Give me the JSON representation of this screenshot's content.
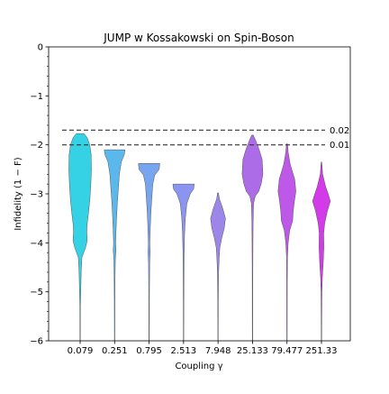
{
  "chart_data": {
    "type": "violin",
    "title": "JUMP w Kossakowski on Spin-Boson",
    "xlabel": "Coupling γ",
    "ylabel": "Infidelity (1 − F)",
    "ylim": [
      -6,
      0
    ],
    "yticks": [
      0,
      -1,
      -2,
      -3,
      -4,
      -5,
      -6
    ],
    "ytick_labels": [
      "0",
      "−1",
      "−2",
      "−3",
      "−4",
      "−5",
      "−6"
    ],
    "grid": false,
    "reference_lines": [
      {
        "label": "0.02",
        "y": -1.699
      },
      {
        "label": "0.01",
        "y": -2.0
      }
    ],
    "categories": [
      "0.079",
      "0.251",
      "0.795",
      "2.513",
      "7.948",
      "25.133",
      "79.477",
      "251.33"
    ],
    "violins": [
      {
        "category": "0.079",
        "color": "#35d2e6",
        "profile": [
          [
            -1.77,
            0.26
          ],
          [
            -1.85,
            0.47
          ],
          [
            -2.0,
            0.65
          ],
          [
            -2.2,
            0.74
          ],
          [
            -2.5,
            0.76
          ],
          [
            -2.8,
            0.72
          ],
          [
            -3.1,
            0.66
          ],
          [
            -3.4,
            0.56
          ],
          [
            -3.65,
            0.46
          ],
          [
            -3.8,
            0.45
          ],
          [
            -3.95,
            0.48
          ],
          [
            -4.1,
            0.36
          ],
          [
            -4.3,
            0.12
          ],
          [
            -4.6,
            0.07
          ],
          [
            -4.9,
            0.05
          ],
          [
            -5.3,
            0.02
          ],
          [
            -6.0,
            0.015
          ]
        ]
      },
      {
        "category": "0.251",
        "color": "#5ab8ec",
        "profile": [
          [
            -2.1,
            0.7
          ],
          [
            -2.2,
            0.65
          ],
          [
            -2.35,
            0.45
          ],
          [
            -2.6,
            0.32
          ],
          [
            -2.9,
            0.25
          ],
          [
            -3.2,
            0.18
          ],
          [
            -3.5,
            0.13
          ],
          [
            -3.8,
            0.09
          ],
          [
            -4.0,
            0.07
          ],
          [
            -4.15,
            0.09
          ],
          [
            -4.35,
            0.05
          ],
          [
            -4.7,
            0.03
          ],
          [
            -5.2,
            0.02
          ],
          [
            -6.0,
            0.015
          ]
        ]
      },
      {
        "category": "0.795",
        "color": "#78a5f0",
        "profile": [
          [
            -2.38,
            0.72
          ],
          [
            -2.5,
            0.68
          ],
          [
            -2.62,
            0.38
          ],
          [
            -2.8,
            0.25
          ],
          [
            -3.1,
            0.18
          ],
          [
            -3.4,
            0.12
          ],
          [
            -3.7,
            0.08
          ],
          [
            -4.0,
            0.05
          ],
          [
            -4.2,
            0.07
          ],
          [
            -4.4,
            0.04
          ],
          [
            -4.8,
            0.03
          ],
          [
            -5.2,
            0.02
          ],
          [
            -6.0,
            0.015
          ]
        ]
      },
      {
        "category": "2.513",
        "color": "#8b94ee",
        "profile": [
          [
            -2.8,
            0.72
          ],
          [
            -2.9,
            0.68
          ],
          [
            -3.0,
            0.45
          ],
          [
            -3.2,
            0.22
          ],
          [
            -3.5,
            0.12
          ],
          [
            -3.8,
            0.07
          ],
          [
            -4.2,
            0.04
          ],
          [
            -4.6,
            0.03
          ],
          [
            -5.2,
            0.02
          ],
          [
            -6.0,
            0.015
          ]
        ]
      },
      {
        "category": "7.948",
        "color": "#9d86ea",
        "profile": [
          [
            -2.98,
            0.03
          ],
          [
            -3.1,
            0.09
          ],
          [
            -3.3,
            0.32
          ],
          [
            -3.5,
            0.5
          ],
          [
            -3.7,
            0.42
          ],
          [
            -3.9,
            0.25
          ],
          [
            -4.1,
            0.12
          ],
          [
            -4.3,
            0.08
          ],
          [
            -4.6,
            0.04
          ],
          [
            -5.2,
            0.02
          ],
          [
            -6.0,
            0.015
          ]
        ]
      },
      {
        "category": "25.133",
        "color": "#ac6ce8",
        "profile": [
          [
            -1.8,
            0.05
          ],
          [
            -1.9,
            0.2
          ],
          [
            -2.1,
            0.45
          ],
          [
            -2.3,
            0.65
          ],
          [
            -2.6,
            0.7
          ],
          [
            -2.8,
            0.58
          ],
          [
            -2.95,
            0.42
          ],
          [
            -3.05,
            0.18
          ],
          [
            -3.2,
            0.07
          ],
          [
            -3.6,
            0.04
          ],
          [
            -4.0,
            0.03
          ],
          [
            -4.6,
            0.02
          ],
          [
            -6.0,
            0.015
          ]
        ]
      },
      {
        "category": "79.477",
        "color": "#bd58e8",
        "profile": [
          [
            -1.98,
            0.04
          ],
          [
            -2.15,
            0.08
          ],
          [
            -2.4,
            0.22
          ],
          [
            -2.7,
            0.52
          ],
          [
            -2.95,
            0.6
          ],
          [
            -3.15,
            0.5
          ],
          [
            -3.35,
            0.42
          ],
          [
            -3.55,
            0.38
          ],
          [
            -3.75,
            0.18
          ],
          [
            -4.0,
            0.08
          ],
          [
            -4.3,
            0.03
          ],
          [
            -4.8,
            0.02
          ],
          [
            -6.0,
            0.015
          ]
        ]
      },
      {
        "category": "251.33",
        "color": "#d33ae8",
        "profile": [
          [
            -2.35,
            0.02
          ],
          [
            -2.6,
            0.08
          ],
          [
            -2.85,
            0.28
          ],
          [
            -3.0,
            0.45
          ],
          [
            -3.15,
            0.6
          ],
          [
            -3.35,
            0.4
          ],
          [
            -3.6,
            0.22
          ],
          [
            -3.8,
            0.15
          ],
          [
            -4.1,
            0.16
          ],
          [
            -4.4,
            0.12
          ],
          [
            -4.7,
            0.06
          ],
          [
            -5.0,
            0.03
          ],
          [
            -6.0,
            0.015
          ]
        ]
      }
    ]
  }
}
